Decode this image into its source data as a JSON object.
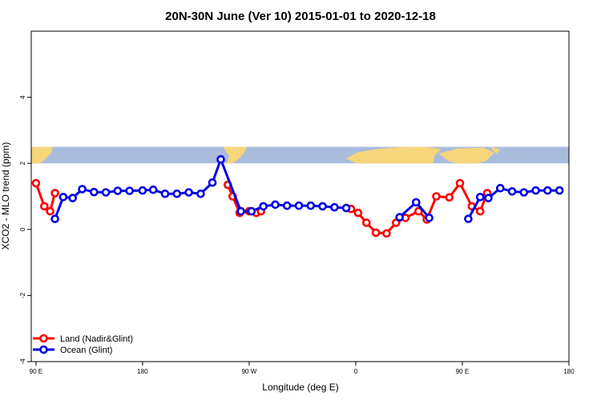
{
  "chart_data": {
    "type": "line",
    "title": "20N-30N June (Ver 10)   2015-01-01 to 2020-12-18",
    "xlabel": "Longitude (deg E)",
    "ylabel": "XCO2 - MLO trend (ppm)",
    "x_ticks": [
      {
        "value": 90,
        "label": "90 E"
      },
      {
        "value": 180,
        "label": "180"
      },
      {
        "value": 270,
        "label": "90 W"
      },
      {
        "value": 360,
        "label": "0"
      },
      {
        "value": 450,
        "label": "90 E"
      },
      {
        "value": 540,
        "label": "180"
      }
    ],
    "y_ticks": [
      -4,
      -2,
      0,
      2,
      4
    ],
    "xlim": [
      86,
      540
    ],
    "ylim": [
      -4,
      6
    ],
    "grid": false,
    "legend_position": "bottom-left",
    "map_strip": {
      "y_range": [
        2.0,
        2.5
      ],
      "ocean_color": "#a9bcdc",
      "land_color": "#f7d57a"
    },
    "series": [
      {
        "name": "Land (Nadir&Glint)",
        "color": "#ff0000",
        "segments": [
          [
            [
              90,
              1.4
            ],
            [
              97,
              0.7
            ],
            [
              102,
              0.55
            ],
            [
              106,
              1.1
            ]
          ],
          [
            [
              252,
              1.35
            ],
            [
              256,
              1.0
            ],
            [
              262,
              0.5
            ],
            [
              270,
              0.55
            ],
            [
              276,
              0.5
            ],
            [
              280,
              0.55
            ]
          ],
          [
            [
              356,
              0.62
            ],
            [
              362,
              0.5
            ],
            [
              369,
              0.2
            ],
            [
              377,
              -0.1
            ],
            [
              386,
              -0.12
            ],
            [
              394,
              0.2
            ],
            [
              402,
              0.35
            ],
            [
              413,
              0.55
            ],
            [
              420,
              0.3
            ],
            [
              428,
              1.0
            ],
            [
              439,
              0.97
            ],
            [
              448,
              1.4
            ],
            [
              458,
              0.7
            ],
            [
              465,
              0.55
            ],
            [
              471,
              1.1
            ]
          ]
        ]
      },
      {
        "name": "Ocean (Glint)",
        "color": "#0000e6",
        "segments": [
          [
            [
              106,
              0.32
            ],
            [
              113,
              0.98
            ],
            [
              121,
              0.95
            ],
            [
              129,
              1.22
            ],
            [
              139,
              1.13
            ],
            [
              149,
              1.12
            ],
            [
              159,
              1.17
            ],
            [
              169,
              1.17
            ],
            [
              180,
              1.18
            ],
            [
              189,
              1.2
            ],
            [
              199,
              1.08
            ],
            [
              209,
              1.08
            ],
            [
              219,
              1.12
            ],
            [
              229,
              1.08
            ],
            [
              239,
              1.42
            ],
            [
              246,
              2.12
            ],
            [
              263,
              0.55
            ],
            [
              272,
              0.55
            ],
            [
              282,
              0.7
            ],
            [
              292,
              0.75
            ],
            [
              302,
              0.72
            ],
            [
              312,
              0.72
            ],
            [
              322,
              0.72
            ],
            [
              332,
              0.7
            ],
            [
              342,
              0.67
            ],
            [
              352,
              0.65
            ]
          ],
          [
            [
              397,
              0.37
            ],
            [
              411,
              0.82
            ],
            [
              422,
              0.35
            ]
          ],
          [
            [
              455,
              0.32
            ],
            [
              465,
              0.98
            ],
            [
              472,
              0.95
            ],
            [
              482,
              1.25
            ],
            [
              492,
              1.15
            ],
            [
              502,
              1.12
            ],
            [
              512,
              1.18
            ],
            [
              522,
              1.18
            ],
            [
              532,
              1.18
            ]
          ]
        ]
      }
    ]
  }
}
